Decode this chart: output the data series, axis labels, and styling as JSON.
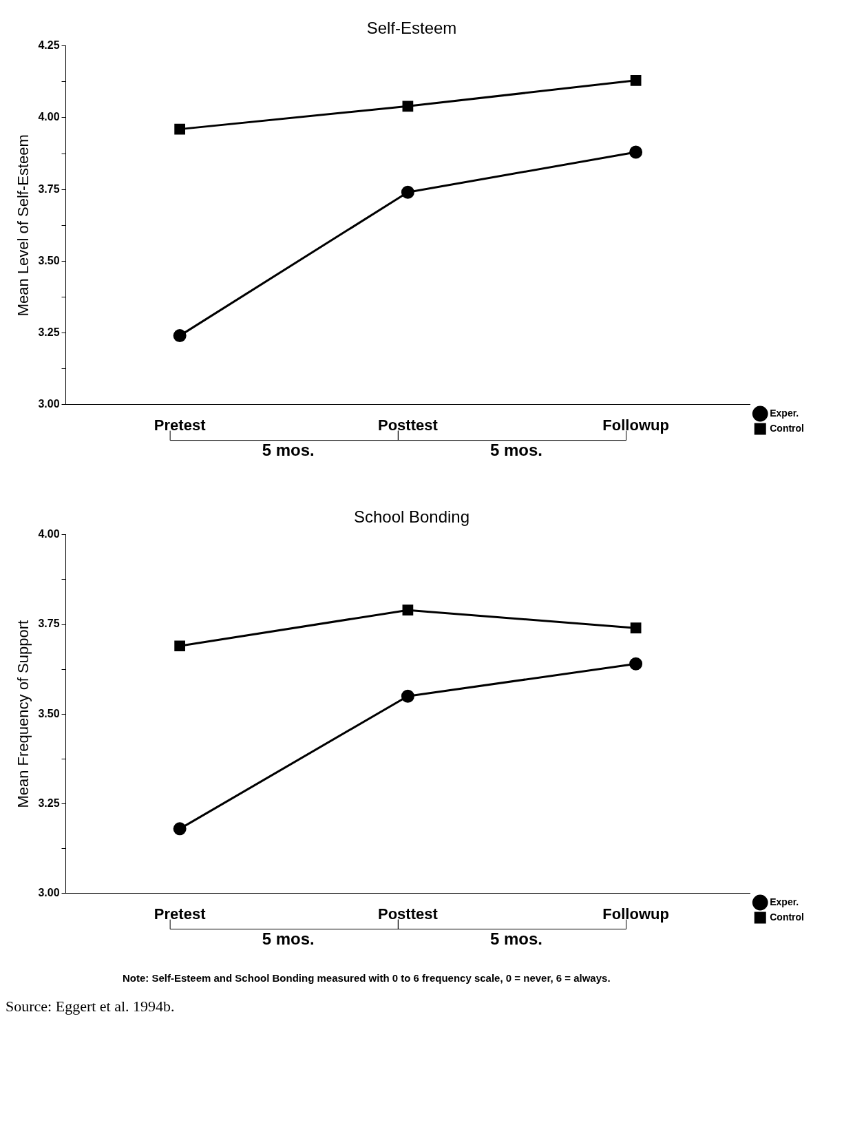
{
  "chart_data": [
    {
      "type": "line",
      "title": "Self-Esteem",
      "ylabel": "Mean Level of Self-Esteem",
      "categories": [
        "Pretest",
        "Posttest",
        "Followup"
      ],
      "series": [
        {
          "name": "Exper.",
          "color": "#000000",
          "marker": "circle",
          "values": [
            3.24,
            3.74,
            3.88
          ]
        },
        {
          "name": "Control",
          "color": "#000000",
          "marker": "square",
          "values": [
            3.96,
            4.04,
            4.13
          ]
        }
      ],
      "ylim": [
        3,
        4.25
      ],
      "yticks": [
        {
          "value": 3,
          "label": "3.00"
        },
        {
          "value": 3.125,
          "label": null
        },
        3.25,
        {
          "value": 3.375,
          "label": null
        },
        {
          "value": 3.5,
          "label": "3.50"
        },
        {
          "value": 3.625,
          "label": null
        },
        3.75,
        {
          "value": 3.875,
          "label": null
        },
        {
          "value": 4,
          "label": "4.00"
        },
        {
          "value": 4.125,
          "label": null
        },
        4.25
      ],
      "grid": false,
      "legend": "bottom right",
      "line_style": "solid",
      "annotations": [
        "5 mos.",
        "5 mos."
      ]
    },
    {
      "type": "line",
      "title": "School Bonding",
      "ylabel": "Mean Frequency of Support",
      "categories": [
        "Pretest",
        "Posttest",
        "Followup"
      ],
      "series": [
        {
          "name": "Exper.",
          "color": "#000000",
          "marker": "circle",
          "values": [
            3.18,
            3.55,
            3.64
          ]
        },
        {
          "name": "Control",
          "color": "#000000",
          "marker": "square",
          "values": [
            3.69,
            3.79,
            3.74
          ]
        }
      ],
      "ylim": [
        3,
        4
      ],
      "yticks": [
        {
          "value": 3,
          "label": "3.00"
        },
        {
          "value": 3.125,
          "label": null
        },
        3.25,
        {
          "value": 3.375,
          "label": null
        },
        {
          "value": 3.5,
          "label": "3.50"
        },
        {
          "value": 3.625,
          "label": null
        },
        3.75,
        {
          "value": 3.875,
          "label": null
        },
        {
          "value": 4,
          "label": "4.00"
        }
      ],
      "grid": false,
      "legend": "bottom right",
      "line_style": "solid",
      "annotations": [
        "5 mos.",
        "5 mos.",
        "Note: Self-Esteem and School Bonding measured with 0 to 6 frequency scale, 0 = never, 6 = always.",
        "Source: Eggert et al. 1994b."
      ]
    }
  ]
}
